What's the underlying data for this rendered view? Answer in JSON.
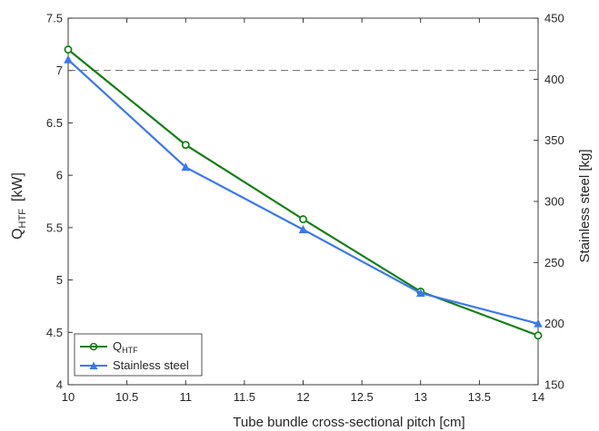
{
  "chart_data": {
    "type": "line",
    "x": [
      10,
      11,
      12,
      13,
      14
    ],
    "xlabel": "Tube bundle cross-sectional pitch  [cm]",
    "xlim": [
      10,
      14
    ],
    "xticks": [
      "10",
      "10.5",
      "11",
      "11.5",
      "12",
      "12.5",
      "13",
      "13.5",
      "14"
    ],
    "ylabel_left": {
      "main": "Q",
      "sub": "HTF",
      "unit": "[kW]"
    },
    "ylim_left": [
      4,
      7.5
    ],
    "yticks_left": [
      "4",
      "4.5",
      "5",
      "5.5",
      "6",
      "6.5",
      "7",
      "7.5"
    ],
    "ylabel_right": "Stainless steel  [kg]",
    "ylim_right": [
      150,
      450
    ],
    "yticks_right": [
      "150",
      "200",
      "250",
      "300",
      "350",
      "400",
      "450"
    ],
    "reference_line": {
      "axis": "left",
      "y": 7.0,
      "style": "dashed"
    },
    "grid": false,
    "legend_position": "bottom-left",
    "series": [
      {
        "name_main": "Q",
        "name_sub": "HTF",
        "axis": "left",
        "marker": "circle",
        "color": "#118011",
        "values": [
          7.2,
          6.29,
          5.58,
          4.89,
          4.47
        ]
      },
      {
        "name": "Stainless steel",
        "axis": "right",
        "marker": "triangle",
        "color": "#3a78f2",
        "values": [
          416,
          328,
          277,
          225,
          200
        ]
      }
    ]
  }
}
